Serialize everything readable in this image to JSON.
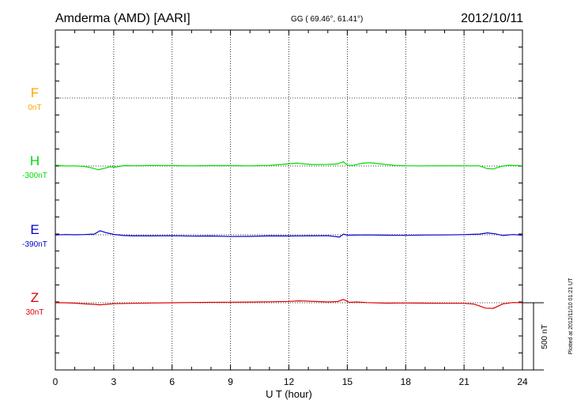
{
  "header": {
    "station": "Amderma (AMD)  [AARI]",
    "coords": "GG ( 69.46°,  61.41°)",
    "date": "2012/10/11"
  },
  "plotted_note": "Plotted at 2012/11/10 01:21  UT",
  "scale_bar_label": "500 nT",
  "colors": {
    "F": "#ffa500",
    "H": "#00dd00",
    "E": "#0000cc",
    "Z": "#dd0000",
    "axis": "#000000"
  },
  "chart_data": {
    "type": "line",
    "title": "Amderma (AMD)  [AARI]",
    "xlabel": "U T (hour)",
    "xlim": [
      0,
      24
    ],
    "x_ticks": [
      "0",
      "3",
      "6",
      "9",
      "12",
      "15",
      "18",
      "21",
      "24"
    ],
    "grid": true,
    "y_units": "nT",
    "scale_bar_nT": 500,
    "series": [
      {
        "name": "F",
        "offset_label": "0nT",
        "baseline_nT": 0,
        "color": "#ffa500",
        "x": [],
        "values": []
      },
      {
        "name": "H",
        "offset_label": "-300nT",
        "baseline_nT": -300,
        "color": "#00dd00",
        "x": [
          0,
          0.5,
          1.0,
          1.5,
          1.9,
          2.2,
          2.5,
          2.8,
          3.1,
          3.5,
          4.0,
          5.0,
          6.0,
          7.0,
          8.0,
          9.0,
          10.0,
          11.0,
          11.8,
          12.4,
          12.8,
          13.2,
          14.0,
          14.5,
          14.8,
          15.0,
          15.3,
          15.8,
          16.2,
          16.8,
          17.5,
          18.0,
          19.0,
          20.0,
          21.0,
          21.8,
          22.2,
          22.5,
          22.9,
          23.3,
          24.0
        ],
        "values": [
          -293,
          -300,
          -299,
          -303,
          -315,
          -328,
          -318,
          -306,
          -308,
          -297,
          -298,
          -296,
          -297,
          -299,
          -297,
          -297,
          -299,
          -295,
          -286,
          -279,
          -285,
          -289,
          -288,
          -285,
          -268,
          -294,
          -295,
          -279,
          -276,
          -286,
          -296,
          -298,
          -299,
          -298,
          -298,
          -299,
          -320,
          -322,
          -303,
          -294,
          -298
        ]
      },
      {
        "name": "E",
        "offset_label": "-390nT",
        "baseline_nT": -390,
        "color": "#0000cc",
        "x": [
          0,
          0.5,
          1.0,
          1.5,
          2.0,
          2.3,
          2.6,
          3.0,
          3.5,
          4.0,
          5.0,
          6.0,
          7.0,
          8.0,
          9.0,
          10.0,
          11.0,
          12.0,
          13.0,
          14.0,
          14.6,
          14.8,
          15.0,
          16.0,
          17.0,
          18.0,
          19.0,
          20.0,
          21.0,
          21.8,
          22.2,
          22.6,
          23.0,
          23.5,
          24.0
        ],
        "values": [
          -392,
          -388,
          -390,
          -388,
          -385,
          -360,
          -374,
          -387,
          -395,
          -398,
          -398,
          -397,
          -400,
          -399,
          -403,
          -402,
          -398,
          -399,
          -398,
          -397,
          -407,
          -385,
          -393,
          -391,
          -393,
          -394,
          -392,
          -391,
          -389,
          -385,
          -376,
          -383,
          -395,
          -388,
          -393
        ]
      },
      {
        "name": "Z",
        "offset_label": "30nT",
        "baseline_nT": 30,
        "color": "#dd0000",
        "x": [
          0,
          0.5,
          1.0,
          1.5,
          2.0,
          2.3,
          2.6,
          3.0,
          4.0,
          5.0,
          6.0,
          7.0,
          8.0,
          9.0,
          10.0,
          11.0,
          12.0,
          12.5,
          13.0,
          14.0,
          14.5,
          14.8,
          15.1,
          15.5,
          16.0,
          17.0,
          18.0,
          19.0,
          20.0,
          21.0,
          21.5,
          21.8,
          22.1,
          22.5,
          23.0,
          23.5,
          24.0
        ],
        "values": [
          30,
          30,
          27,
          22,
          18,
          15,
          18,
          23,
          26,
          28,
          30,
          32,
          33,
          34,
          35,
          37,
          40,
          44,
          42,
          36,
          39,
          55,
          33,
          36,
          31,
          27,
          28,
          27,
          26,
          26,
          20,
          6,
          -10,
          -12,
          22,
          32,
          30
        ]
      }
    ]
  }
}
